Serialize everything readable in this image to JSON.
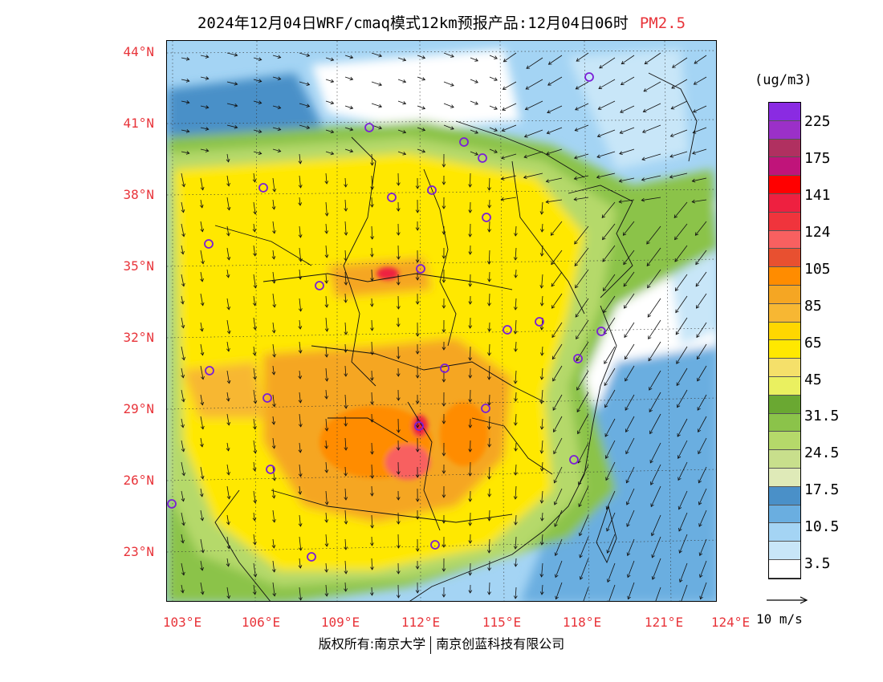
{
  "header": {
    "title": "2024年12月04日WRF/cmaq模式12km预报产品:12月04日06时",
    "species": "PM2.5"
  },
  "map": {
    "description_layers": [
      "pm25-concentration",
      "wind-vectors",
      "province-borders",
      "city-markers"
    ],
    "lat_labels": [
      "44°N",
      "41°N",
      "38°N",
      "35°N",
      "32°N",
      "29°N",
      "26°N",
      "23°N"
    ],
    "lon_labels": [
      "103°E",
      "106°E",
      "109°E",
      "112°E",
      "115°E",
      "118°E",
      "121°E",
      "124°E"
    ]
  },
  "legend": {
    "unit": "(ug/m3)",
    "labels": [
      "225",
      "175",
      "141",
      "124",
      "105",
      "85",
      "65",
      "45",
      "31.5",
      "24.5",
      "17.5",
      "10.5",
      "3.5"
    ],
    "colors": [
      "#8a2be2",
      "#9b30c8",
      "#b03060",
      "#c0147a",
      "#ff0000",
      "#ee2040",
      "#f0343c",
      "#f86060",
      "#e85030",
      "#ff8c00",
      "#f5a623",
      "#f7b733",
      "#ffd700",
      "#ffe800",
      "#f5e06a",
      "#eaf060",
      "#6aa832",
      "#8bc34a",
      "#b5d96a",
      "#c8df8c",
      "#dfeab8",
      "#4a90c8",
      "#6aaee0",
      "#a4d4f4",
      "#c8e6f8",
      "#ffffff"
    ],
    "wind_reference": "10 m/s"
  },
  "footer": {
    "left": "版权所有:南京大学",
    "right": "南京创蓝科技有限公司"
  }
}
